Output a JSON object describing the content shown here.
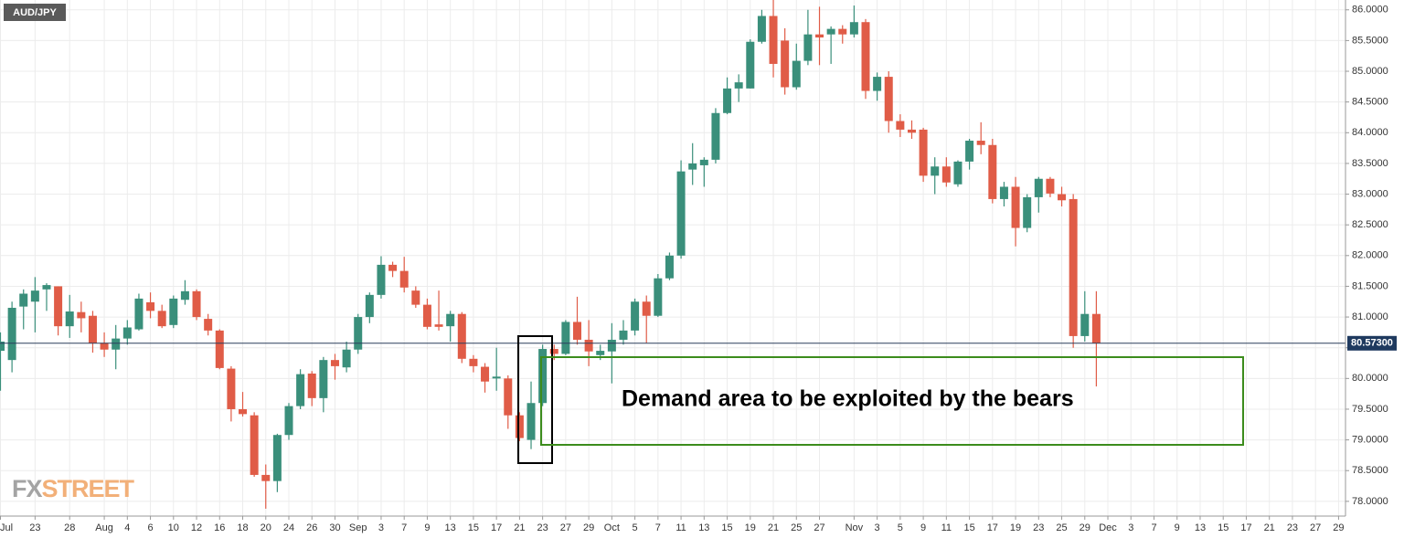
{
  "chart_data": {
    "type": "candlestick",
    "title": "AUD/JPY",
    "categories": [
      "Jul",
      null,
      null,
      "23",
      null,
      null,
      "28",
      null,
      null,
      "Aug",
      null,
      "4",
      null,
      "6",
      null,
      "10",
      null,
      "12",
      null,
      "16",
      null,
      "18",
      null,
      "20",
      null,
      "24",
      null,
      "26",
      null,
      "30",
      null,
      "Sep",
      null,
      "3",
      null,
      "7",
      null,
      "9",
      null,
      "13",
      null,
      "15",
      null,
      "17",
      null,
      "21",
      null,
      "23",
      null,
      "27",
      null,
      "29",
      null,
      "Oct",
      null,
      "5",
      null,
      "7",
      null,
      "11",
      null,
      "13",
      null,
      "15",
      null,
      "19",
      null,
      "21",
      null,
      "25",
      null,
      "27",
      null,
      null,
      "Nov",
      null,
      "3",
      null,
      "5",
      null,
      "9",
      null,
      "11",
      null,
      "15",
      null,
      "17",
      null,
      "19",
      null,
      "23",
      null,
      "25",
      null,
      "29",
      null,
      "Dec",
      null,
      "3",
      null,
      "7",
      null,
      "9",
      null,
      "13",
      null,
      "15",
      null,
      "17",
      null,
      "21",
      null,
      "23",
      null,
      "27",
      null,
      "29"
    ],
    "open": [
      80.45,
      80.3,
      81.17,
      81.25,
      81.45,
      81.5,
      80.85,
      81.08,
      81.02,
      80.58,
      80.47,
      80.65,
      80.8,
      81.24,
      81.1,
      80.87,
      81.28,
      81.42,
      80.97,
      80.78,
      80.16,
      79.5,
      79.4,
      78.43,
      78.33,
      79.08,
      79.55,
      80.08,
      79.68,
      80.3,
      80.18,
      80.47,
      81.0,
      81.36,
      81.85,
      81.75,
      81.43,
      81.2,
      80.88,
      80.85,
      81.05,
      80.32,
      80.19,
      80.0,
      80.0,
      79.4,
      79.0,
      79.6,
      80.48,
      80.4,
      80.92,
      80.63,
      80.38,
      80.44,
      80.63,
      80.78,
      81.25,
      81.02,
      81.63,
      82.0,
      83.4,
      83.47,
      83.56,
      84.32,
      84.72,
      84.72,
      85.48,
      85.9,
      85.5,
      84.74,
      85.17,
      85.6,
      85.6,
      85.69,
      85.6,
      85.8,
      84.68,
      84.91,
      84.19,
      84.05,
      84.05,
      83.3,
      83.45,
      83.16,
      83.53,
      83.87,
      83.8,
      82.92,
      83.12,
      82.45,
      82.95,
      83.25,
      83.0,
      82.92,
      80.69,
      81.05,
      null,
      null,
      null,
      null,
      null,
      null,
      null,
      null,
      null,
      null,
      null,
      null,
      null,
      null,
      null,
      null,
      null,
      null,
      null,
      null,
      null
    ],
    "high": [
      80.75,
      81.25,
      81.45,
      81.65,
      81.55,
      81.5,
      81.36,
      81.25,
      81.1,
      80.75,
      80.87,
      80.95,
      81.38,
      81.4,
      81.2,
      81.35,
      81.6,
      81.45,
      81.05,
      80.8,
      80.2,
      79.78,
      79.45,
      78.6,
      79.1,
      79.6,
      80.15,
      80.12,
      80.35,
      80.4,
      80.6,
      81.05,
      81.4,
      81.99,
      81.9,
      81.98,
      81.5,
      81.3,
      81.43,
      81.1,
      81.08,
      80.38,
      80.25,
      80.5,
      80.05,
      79.45,
      79.95,
      80.55,
      80.55,
      80.95,
      81.33,
      80.95,
      80.55,
      80.9,
      80.95,
      81.3,
      81.35,
      81.7,
      82.05,
      83.55,
      83.83,
      83.6,
      84.4,
      84.9,
      84.95,
      85.52,
      86.0,
      86.16,
      85.7,
      85.45,
      86.0,
      86.05,
      85.73,
      85.75,
      86.07,
      85.85,
      84.98,
      85.0,
      84.3,
      84.2,
      84.08,
      83.6,
      83.6,
      83.55,
      83.9,
      84.17,
      83.9,
      83.2,
      83.28,
      83.0,
      83.28,
      83.28,
      83.12,
      83.0,
      81.42,
      81.42,
      null,
      null,
      null,
      null,
      null,
      null,
      null,
      null,
      null,
      null,
      null,
      null,
      null,
      null,
      null,
      null,
      null,
      null,
      null,
      null,
      null
    ],
    "low": [
      79.8,
      80.1,
      80.8,
      80.75,
      81.1,
      80.7,
      80.66,
      80.75,
      80.42,
      80.35,
      80.15,
      80.55,
      80.78,
      80.98,
      80.82,
      80.82,
      81.2,
      80.95,
      80.7,
      80.15,
      79.3,
      79.38,
      78.4,
      77.88,
      78.15,
      79.0,
      79.5,
      79.55,
      79.45,
      79.98,
      80.1,
      80.4,
      80.9,
      81.3,
      81.65,
      81.4,
      81.15,
      80.8,
      80.78,
      80.6,
      80.25,
      80.1,
      79.77,
      79.8,
      79.18,
      78.98,
      78.85,
      79.55,
      80.3,
      80.38,
      80.55,
      80.2,
      80.3,
      79.92,
      80.55,
      80.7,
      80.58,
      81.0,
      81.6,
      81.95,
      83.15,
      83.12,
      83.5,
      84.3,
      84.5,
      84.72,
      85.45,
      84.9,
      84.62,
      84.7,
      85.1,
      85.1,
      85.12,
      85.45,
      85.55,
      84.55,
      84.52,
      84.0,
      83.93,
      83.9,
      83.2,
      83.0,
      83.12,
      83.12,
      83.4,
      83.65,
      82.85,
      82.8,
      82.15,
      82.38,
      82.7,
      82.95,
      82.8,
      80.5,
      80.6,
      79.87,
      null,
      null,
      null,
      null,
      null,
      null,
      null,
      null,
      null,
      null,
      null,
      null,
      null,
      null,
      null,
      null,
      null,
      null,
      null,
      null,
      null
    ],
    "close": [
      80.6,
      81.15,
      81.38,
      81.43,
      81.52,
      80.85,
      81.09,
      80.98,
      80.57,
      80.47,
      80.65,
      80.83,
      81.3,
      81.1,
      80.85,
      81.3,
      81.42,
      81.0,
      80.78,
      80.17,
      79.5,
      79.42,
      78.43,
      78.33,
      79.08,
      79.55,
      80.07,
      79.68,
      80.3,
      80.2,
      80.47,
      81.0,
      81.36,
      81.85,
      81.75,
      81.48,
      81.2,
      80.84,
      80.84,
      81.05,
      80.32,
      80.2,
      79.95,
      80.03,
      79.4,
      79.03,
      79.6,
      80.48,
      80.4,
      80.92,
      80.63,
      80.44,
      80.45,
      80.63,
      80.78,
      81.25,
      81.02,
      81.63,
      82.0,
      83.37,
      83.5,
      83.56,
      84.32,
      84.72,
      84.82,
      85.48,
      85.9,
      85.12,
      84.74,
      85.17,
      85.6,
      85.55,
      85.69,
      85.6,
      85.8,
      84.68,
      84.91,
      84.19,
      84.05,
      84.0,
      83.3,
      83.45,
      83.19,
      83.53,
      83.87,
      83.8,
      82.92,
      83.12,
      82.45,
      82.95,
      83.25,
      83.01,
      82.9,
      80.69,
      81.05,
      80.573,
      null,
      null,
      null,
      null,
      null,
      null,
      null,
      null,
      null,
      null,
      null,
      null,
      null,
      null,
      null,
      null,
      null,
      null,
      null,
      null,
      null
    ],
    "up_color": "#3a8f7b",
    "down_color": "#e05c47",
    "ylim": [
      77.76,
      86.16
    ],
    "yticks": [
      {
        "value": 78,
        "label": "78.0000"
      },
      {
        "value": 78.5,
        "label": "78.5000"
      },
      {
        "value": 79,
        "label": "79.0000"
      },
      {
        "value": 79.5,
        "label": "79.5000"
      },
      {
        "value": 80,
        "label": "80.0000"
      },
      {
        "value": 80.5,
        "label": "80.5000"
      },
      {
        "value": 81,
        "label": "81.0000"
      },
      {
        "value": 81.5,
        "label": "81.5000"
      },
      {
        "value": 82,
        "label": "82.0000"
      },
      {
        "value": 82.5,
        "label": "82.5000"
      },
      {
        "value": 83,
        "label": "83.0000"
      },
      {
        "value": 83.5,
        "label": "83.5000"
      },
      {
        "value": 84,
        "label": "84.0000"
      },
      {
        "value": 84.5,
        "label": "84.5000"
      },
      {
        "value": 85,
        "label": "85.0000"
      },
      {
        "value": 85.5,
        "label": "85.5000"
      },
      {
        "value": 86,
        "label": "86.0000"
      }
    ],
    "grid": true,
    "last_price": {
      "value": 80.573,
      "label": "80.57300"
    },
    "annotation": "Demand area to be exploited by the bears",
    "watermark": [
      "FX",
      "STREET"
    ]
  }
}
